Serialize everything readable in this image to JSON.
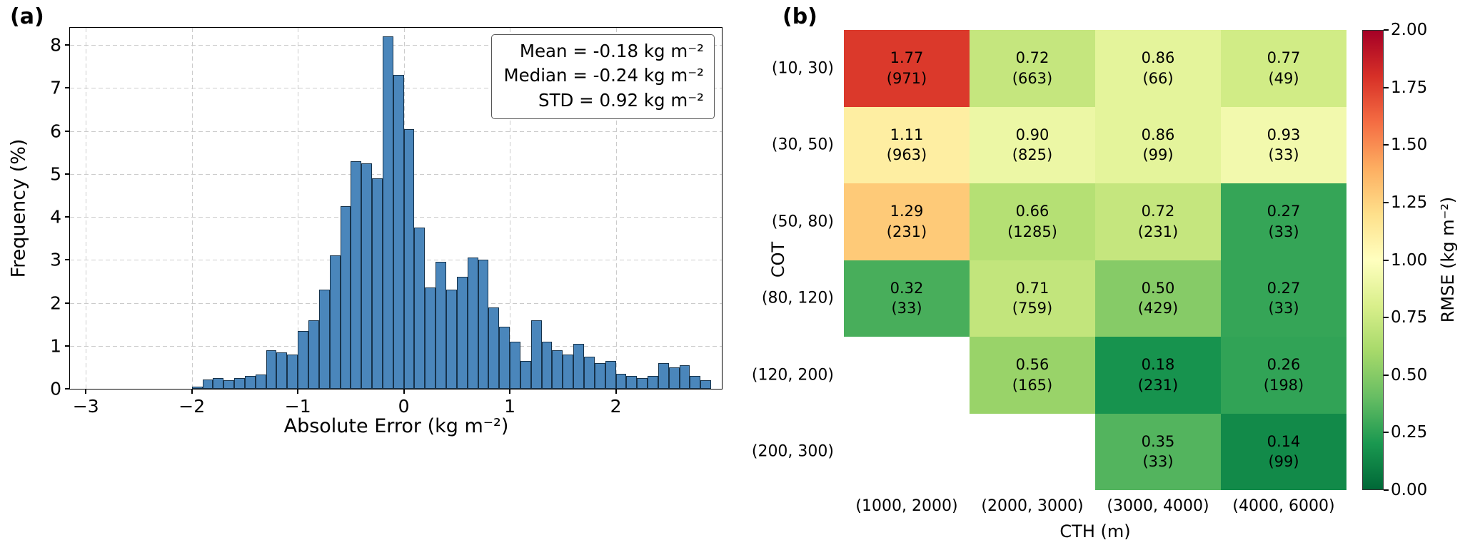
{
  "figure": {
    "background": "#ffffff"
  },
  "panel_a": {
    "tag": "(a)",
    "xlabel": "Absolute Error (kg m⁻²)",
    "ylabel": "Frequency (%)",
    "stats_lines": [
      "Mean = -0.18 kg m⁻²",
      "Median = -0.24 kg m⁻²",
      "STD = 0.92 kg m⁻²"
    ],
    "bar_color": "#4a86bb",
    "bar_edge_color": "#16324a",
    "grid_color": "#cbcbcb"
  },
  "panel_b": {
    "tag": "(b)",
    "xlabel": "CTH (m)",
    "ylabel": "COT",
    "colorbar_label": "RMSE (kg m⁻²)"
  },
  "chart_data": [
    {
      "type": "bar",
      "subtype": "histogram",
      "title": "",
      "xlabel": "Absolute Error (kg m⁻²)",
      "ylabel": "Frequency (%)",
      "xlim": [
        -3.15,
        3.0
      ],
      "ylim": [
        0,
        8.4
      ],
      "xticks": [
        -3,
        -2,
        -1,
        0,
        1,
        2
      ],
      "xtick_labels": [
        "−3",
        "−2",
        "−1",
        "0",
        "1",
        "2"
      ],
      "yticks": [
        0,
        1,
        2,
        3,
        4,
        5,
        6,
        7,
        8
      ],
      "ytick_labels": [
        "0",
        "1",
        "2",
        "3",
        "4",
        "5",
        "6",
        "7",
        "8"
      ],
      "grid": true,
      "bin_start": -2.0,
      "bin_width": 0.1,
      "frequencies": [
        0.05,
        0.22,
        0.25,
        0.2,
        0.25,
        0.3,
        0.33,
        0.9,
        0.85,
        0.8,
        1.35,
        1.6,
        2.3,
        3.1,
        4.25,
        5.3,
        5.25,
        4.9,
        8.2,
        7.3,
        6.05,
        3.75,
        2.35,
        2.95,
        2.3,
        2.6,
        3.05,
        3.0,
        1.9,
        1.45,
        1.1,
        0.65,
        1.6,
        1.1,
        0.9,
        0.8,
        1.05,
        0.75,
        0.6,
        0.65,
        0.35,
        0.3,
        0.25,
        0.3,
        0.6,
        0.5,
        0.55,
        0.3,
        0.2
      ],
      "stats": {
        "mean": -0.18,
        "median": -0.24,
        "std": 0.92
      }
    },
    {
      "type": "heatmap",
      "xlabel": "CTH (m)",
      "ylabel": "COT",
      "x_categories": [
        "(1000, 2000)",
        "(2000, 3000)",
        "(3000, 4000)",
        "(4000, 6000)"
      ],
      "y_categories": [
        "(10, 30)",
        "(30, 50)",
        "(50, 80)",
        "(80, 120)",
        "(120, 200)",
        "(200, 300)"
      ],
      "values": [
        [
          1.77,
          0.72,
          0.86,
          0.77
        ],
        [
          1.11,
          0.9,
          0.86,
          0.93
        ],
        [
          1.29,
          0.66,
          0.72,
          0.27
        ],
        [
          0.32,
          0.71,
          0.5,
          0.27
        ],
        [
          null,
          0.56,
          0.18,
          0.26
        ],
        [
          null,
          null,
          0.35,
          0.14
        ]
      ],
      "counts": [
        [
          971,
          663,
          66,
          49
        ],
        [
          963,
          825,
          99,
          33
        ],
        [
          231,
          1285,
          231,
          33
        ],
        [
          33,
          759,
          429,
          33
        ],
        [
          null,
          165,
          231,
          198
        ],
        [
          null,
          null,
          33,
          99
        ]
      ],
      "colorbar": {
        "label": "RMSE (kg m⁻²)",
        "min": 0.0,
        "max": 2.0,
        "ticks": [
          {
            "value": 0.0,
            "label": "0.00"
          },
          {
            "value": 0.25,
            "label": "0.25"
          },
          {
            "value": 0.5,
            "label": "0.50"
          },
          {
            "value": 0.75,
            "label": "0.75"
          },
          {
            "value": 1.0,
            "label": "1.00"
          },
          {
            "value": 1.25,
            "label": "1.25"
          },
          {
            "value": 1.5,
            "label": "1.50"
          },
          {
            "value": 1.75,
            "label": "1.75"
          },
          {
            "value": 2.0,
            "label": "2.00"
          }
        ]
      },
      "colormap": "RdYlGn_r",
      "colormap_stops": [
        "#006837",
        "#1a9850",
        "#66bd63",
        "#a6d96a",
        "#d9ef8b",
        "#ffffbf",
        "#fee08b",
        "#fdae61",
        "#f46d43",
        "#d73027",
        "#a50026"
      ]
    }
  ]
}
